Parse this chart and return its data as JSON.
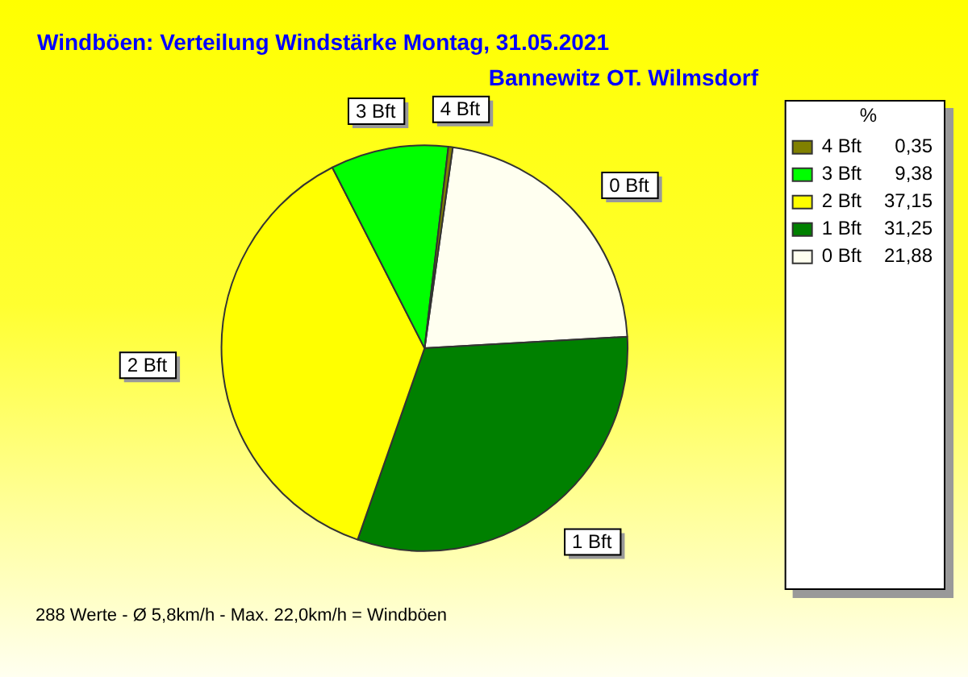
{
  "chart_data": {
    "type": "pie",
    "title": "Windböen: Verteilung Windstärke  Montag, 31.05.2021",
    "subtitle": "Bannewitz OT. Wilmsdorf",
    "categories": [
      "0 Bft",
      "1 Bft",
      "2 Bft",
      "3 Bft",
      "4 Bft"
    ],
    "values": [
      21.88,
      31.25,
      37.15,
      9.38,
      0.35
    ],
    "colors": [
      "#fffff0",
      "#008000",
      "#ffff00",
      "#00ff00",
      "#808000"
    ],
    "value_labels": [
      "21,88",
      "31,25",
      "37,15",
      "9,38",
      "0,35"
    ],
    "legend_title": "%",
    "legend": "top right",
    "annotations": [
      "288 Werte   -   Ø 5,8km/h  -  Max. 22,0km/h = Windböen"
    ]
  }
}
